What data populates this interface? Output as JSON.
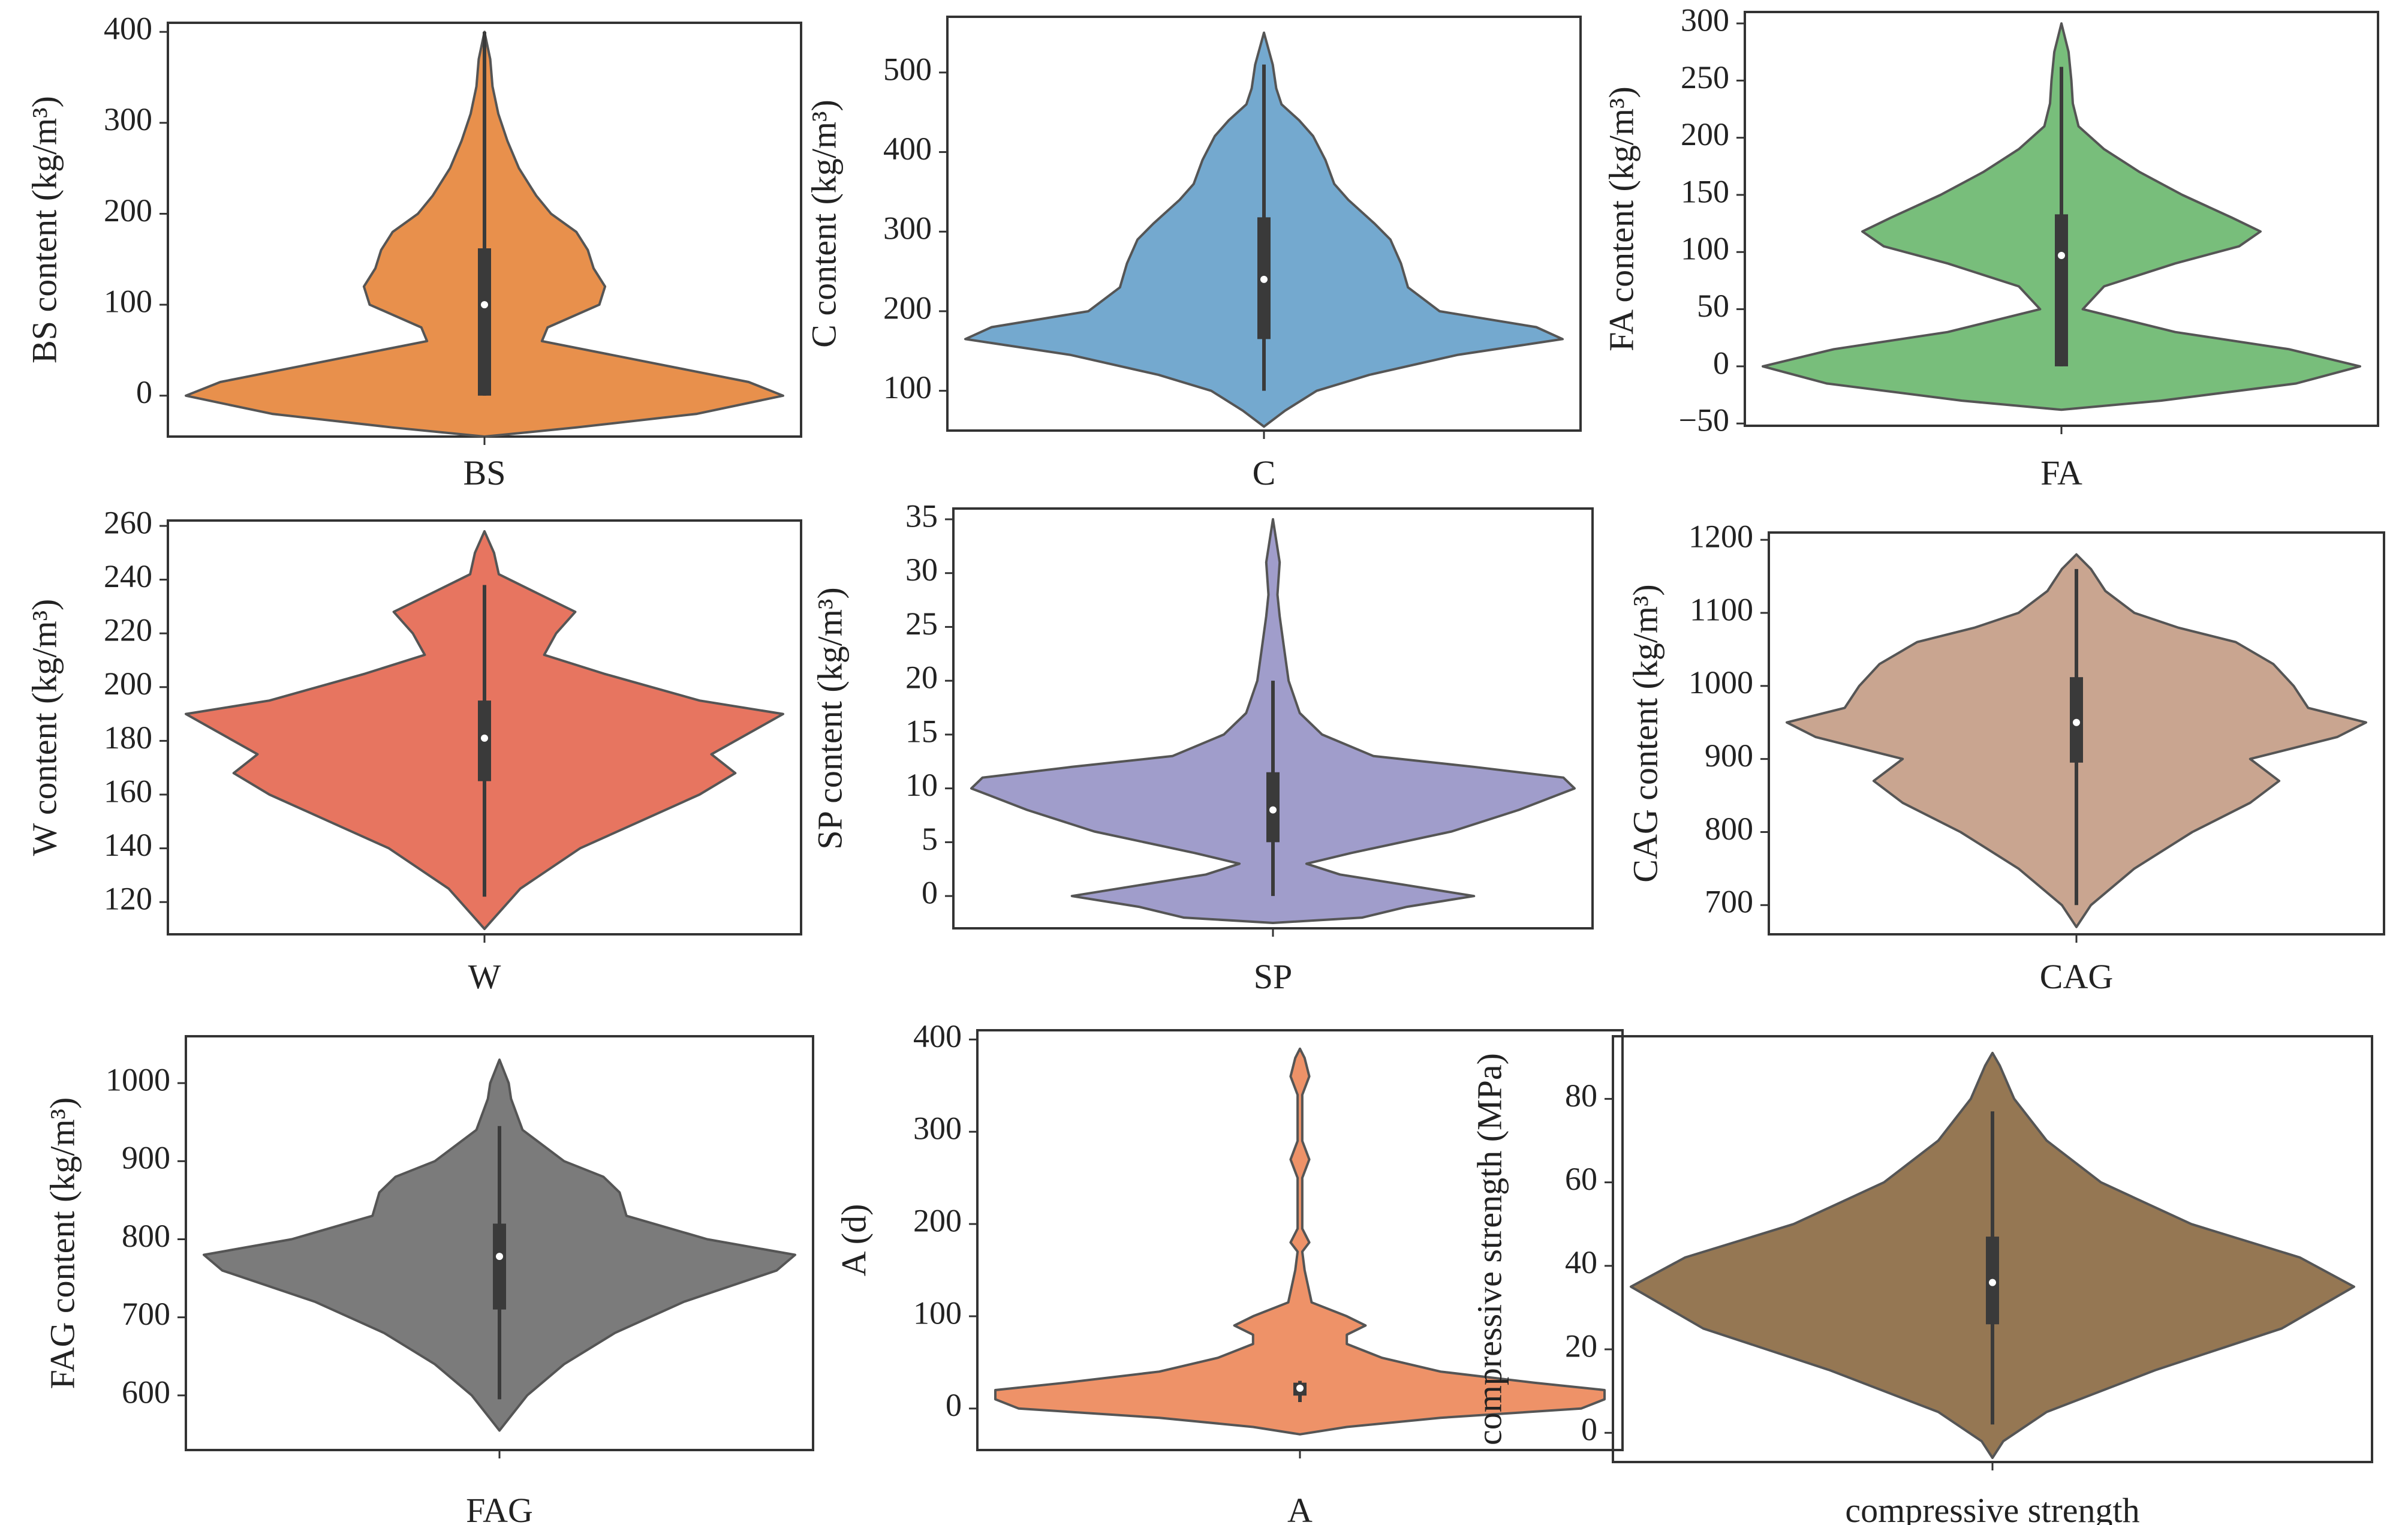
{
  "figure_title": "",
  "chart_data": [
    {
      "type": "violin",
      "category": "BS",
      "ylabel": "BS content (kg/m³)",
      "ylim": [
        -45,
        410
      ],
      "yticks": [
        0,
        100,
        200,
        300,
        400
      ],
      "color": "#E8904C",
      "summary": {
        "min": 0,
        "q1": 0,
        "median": 100,
        "q3": 162,
        "max": 400
      },
      "density": [
        [
          -45,
          0
        ],
        [
          -35,
          0.8
        ],
        [
          -20,
          1.85
        ],
        [
          0,
          2.6
        ],
        [
          15,
          2.3
        ],
        [
          35,
          1.5
        ],
        [
          60,
          0.5
        ],
        [
          75,
          0.55
        ],
        [
          100,
          1.0
        ],
        [
          120,
          1.05
        ],
        [
          140,
          0.95
        ],
        [
          160,
          0.9
        ],
        [
          180,
          0.8
        ],
        [
          200,
          0.58
        ],
        [
          220,
          0.45
        ],
        [
          250,
          0.3
        ],
        [
          280,
          0.2
        ],
        [
          310,
          0.12
        ],
        [
          340,
          0.07
        ],
        [
          370,
          0.05
        ],
        [
          400,
          0
        ]
      ]
    },
    {
      "type": "violin",
      "category": "C",
      "ylabel": "C content (kg/m³)",
      "ylim": [
        50,
        570
      ],
      "yticks": [
        100,
        200,
        300,
        400,
        500
      ],
      "color": "#74A9CF",
      "summary": {
        "min": 100,
        "q1": 165,
        "median": 240,
        "q3": 318,
        "max": 510
      },
      "density": [
        [
          55,
          0
        ],
        [
          75,
          0.12
        ],
        [
          100,
          0.3
        ],
        [
          120,
          0.6
        ],
        [
          145,
          1.1
        ],
        [
          165,
          1.7
        ],
        [
          180,
          1.55
        ],
        [
          200,
          1.0
        ],
        [
          230,
          0.82
        ],
        [
          260,
          0.78
        ],
        [
          290,
          0.72
        ],
        [
          310,
          0.63
        ],
        [
          340,
          0.48
        ],
        [
          360,
          0.4
        ],
        [
          390,
          0.35
        ],
        [
          420,
          0.28
        ],
        [
          440,
          0.2
        ],
        [
          460,
          0.1
        ],
        [
          480,
          0.07
        ],
        [
          510,
          0.05
        ],
        [
          550,
          0
        ]
      ]
    },
    {
      "type": "violin",
      "category": "FA",
      "ylabel": "FA content (kg/m³)",
      "ylim": [
        -52,
        310
      ],
      "yticks": [
        -50,
        0,
        50,
        100,
        150,
        200,
        250,
        300
      ],
      "color": "#78BE7B",
      "summary": {
        "min": 0,
        "q1": 0,
        "median": 97,
        "q3": 133,
        "max": 262
      },
      "density": [
        [
          -38,
          0
        ],
        [
          -30,
          0.7
        ],
        [
          -15,
          1.65
        ],
        [
          0,
          2.1
        ],
        [
          15,
          1.6
        ],
        [
          30,
          0.8
        ],
        [
          50,
          0.15
        ],
        [
          70,
          0.3
        ],
        [
          90,
          0.8
        ],
        [
          105,
          1.25
        ],
        [
          118,
          1.4
        ],
        [
          130,
          1.2
        ],
        [
          150,
          0.85
        ],
        [
          170,
          0.55
        ],
        [
          190,
          0.3
        ],
        [
          210,
          0.12
        ],
        [
          230,
          0.08
        ],
        [
          250,
          0.07
        ],
        [
          275,
          0.05
        ],
        [
          300,
          0
        ]
      ]
    },
    {
      "type": "violin",
      "category": "W",
      "ylabel": "W content (kg/m³)",
      "ylim": [
        108,
        262
      ],
      "yticks": [
        120,
        140,
        160,
        180,
        200,
        220,
        240,
        260
      ],
      "color": "#E77560",
      "summary": {
        "min": 122,
        "q1": 165,
        "median": 181,
        "q3": 195,
        "max": 238
      },
      "density": [
        [
          110,
          0
        ],
        [
          115,
          0.05
        ],
        [
          125,
          0.15
        ],
        [
          140,
          0.4
        ],
        [
          150,
          0.65
        ],
        [
          160,
          0.9
        ],
        [
          168,
          1.05
        ],
        [
          175,
          0.95
        ],
        [
          185,
          1.15
        ],
        [
          190,
          1.25
        ],
        [
          195,
          0.9
        ],
        [
          205,
          0.5
        ],
        [
          212,
          0.25
        ],
        [
          220,
          0.3
        ],
        [
          228,
          0.38
        ],
        [
          235,
          0.22
        ],
        [
          242,
          0.06
        ],
        [
          250,
          0.04
        ],
        [
          258,
          0
        ]
      ]
    },
    {
      "type": "violin",
      "category": "SP",
      "ylabel": "SP content (kg/m³)",
      "ylim": [
        -3,
        36
      ],
      "yticks": [
        0,
        5,
        10,
        15,
        20,
        25,
        30,
        35
      ],
      "color": "#A09DCB",
      "summary": {
        "min": 0,
        "q1": 5,
        "median": 8,
        "q3": 11.5,
        "max": 20
      },
      "density": [
        [
          -2.5,
          0
        ],
        [
          -2,
          0.4
        ],
        [
          -1,
          0.6
        ],
        [
          0,
          0.9
        ],
        [
          1,
          0.6
        ],
        [
          2,
          0.3
        ],
        [
          3,
          0.15
        ],
        [
          4,
          0.35
        ],
        [
          6,
          0.8
        ],
        [
          8,
          1.1
        ],
        [
          10,
          1.35
        ],
        [
          11,
          1.3
        ],
        [
          12,
          0.9
        ],
        [
          13,
          0.45
        ],
        [
          15,
          0.22
        ],
        [
          17,
          0.12
        ],
        [
          20,
          0.07
        ],
        [
          23,
          0.05
        ],
        [
          26,
          0.03
        ],
        [
          28,
          0.02
        ],
        [
          31,
          0.03
        ],
        [
          35,
          0
        ]
      ]
    },
    {
      "type": "violin",
      "category": "CAG",
      "ylabel": "CAG content (kg/m³)",
      "ylim": [
        660,
        1210
      ],
      "yticks": [
        700,
        800,
        900,
        1000,
        1100,
        1200
      ],
      "color": "#C9A590",
      "summary": {
        "min": 700,
        "q1": 895,
        "median": 950,
        "q3": 1012,
        "max": 1160
      },
      "density": [
        [
          670,
          0
        ],
        [
          700,
          0.05
        ],
        [
          750,
          0.2
        ],
        [
          800,
          0.4
        ],
        [
          840,
          0.6
        ],
        [
          870,
          0.7
        ],
        [
          900,
          0.6
        ],
        [
          930,
          0.9
        ],
        [
          950,
          1.0
        ],
        [
          970,
          0.8
        ],
        [
          1000,
          0.75
        ],
        [
          1030,
          0.68
        ],
        [
          1060,
          0.55
        ],
        [
          1080,
          0.35
        ],
        [
          1100,
          0.2
        ],
        [
          1130,
          0.1
        ],
        [
          1160,
          0.05
        ],
        [
          1180,
          0
        ]
      ]
    },
    {
      "type": "violin",
      "category": "FAG",
      "ylabel": "FAG content (kg/m³)",
      "ylim": [
        530,
        1060
      ],
      "yticks": [
        600,
        700,
        800,
        900,
        1000
      ],
      "color": "#7B7B7B",
      "summary": {
        "min": 595,
        "q1": 710,
        "median": 778,
        "q3": 820,
        "max": 945
      },
      "density": [
        [
          555,
          0
        ],
        [
          570,
          0.04
        ],
        [
          600,
          0.12
        ],
        [
          640,
          0.28
        ],
        [
          680,
          0.5
        ],
        [
          720,
          0.8
        ],
        [
          760,
          1.2
        ],
        [
          780,
          1.28
        ],
        [
          800,
          0.9
        ],
        [
          830,
          0.55
        ],
        [
          860,
          0.52
        ],
        [
          880,
          0.45
        ],
        [
          900,
          0.28
        ],
        [
          940,
          0.1
        ],
        [
          980,
          0.05
        ],
        [
          1000,
          0.04
        ],
        [
          1030,
          0
        ]
      ]
    },
    {
      "type": "violin",
      "category": "A",
      "ylabel": "A (d)",
      "xlabel": "A",
      "ylim": [
        -45,
        410
      ],
      "yticks": [
        0,
        100,
        200,
        300,
        400
      ],
      "color": "#EE9268",
      "summary": {
        "min": 7,
        "q1": 14,
        "median": 22,
        "q3": 28,
        "max": 30
      },
      "density": [
        [
          -28,
          0
        ],
        [
          -20,
          0.2
        ],
        [
          -10,
          0.6
        ],
        [
          0,
          1.2
        ],
        [
          10,
          1.3
        ],
        [
          20,
          1.3
        ],
        [
          28,
          1.0
        ],
        [
          40,
          0.6
        ],
        [
          55,
          0.35
        ],
        [
          70,
          0.2
        ],
        [
          80,
          0.2
        ],
        [
          90,
          0.28
        ],
        [
          100,
          0.2
        ],
        [
          115,
          0.05
        ],
        [
          150,
          0.02
        ],
        [
          170,
          0.01
        ],
        [
          180,
          0.04
        ],
        [
          195,
          0.01
        ],
        [
          250,
          0.01
        ],
        [
          270,
          0.04
        ],
        [
          290,
          0.01
        ],
        [
          340,
          0.01
        ],
        [
          360,
          0.04
        ],
        [
          380,
          0.02
        ],
        [
          390,
          0
        ]
      ]
    },
    {
      "type": "violin",
      "category": "compressive strength",
      "ylabel": "compressive strength (MPa)",
      "ylim": [
        -7,
        95
      ],
      "yticks": [
        0,
        20,
        40,
        60,
        80
      ],
      "color": "#957753",
      "summary": {
        "min": 2,
        "q1": 26,
        "median": 36,
        "q3": 47,
        "max": 77
      },
      "density": [
        [
          -6,
          0
        ],
        [
          -2,
          0.03
        ],
        [
          5,
          0.15
        ],
        [
          15,
          0.45
        ],
        [
          25,
          0.8
        ],
        [
          35,
          1.0
        ],
        [
          42,
          0.85
        ],
        [
          50,
          0.55
        ],
        [
          60,
          0.3
        ],
        [
          70,
          0.15
        ],
        [
          80,
          0.06
        ],
        [
          88,
          0.02
        ],
        [
          91,
          0
        ]
      ]
    }
  ]
}
